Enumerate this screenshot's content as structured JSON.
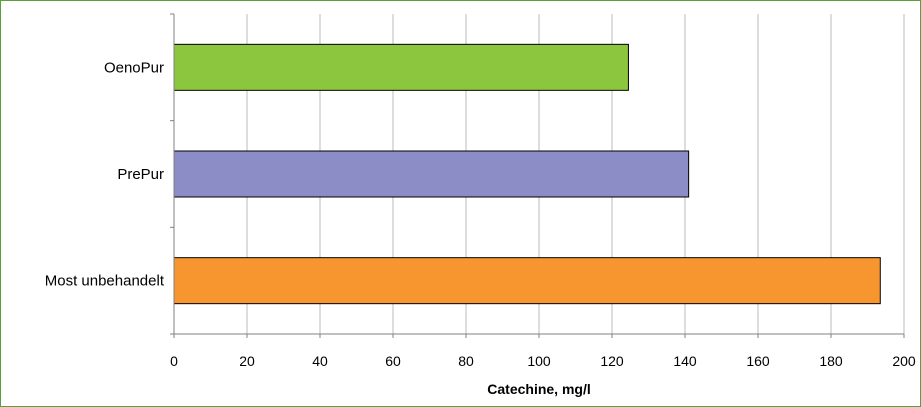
{
  "chart_data": {
    "type": "bar",
    "orientation": "horizontal",
    "categories": [
      "OenoPur",
      "PrePur",
      "Most unbehandelt"
    ],
    "values": [
      124.5,
      141,
      193.5
    ],
    "colors": [
      "#8cc63f",
      "#8c8cc6",
      "#f7962f"
    ],
    "xlabel": "Catechine, mg/l",
    "ylabel": "",
    "xlim": [
      0,
      200
    ],
    "xticks": [
      0,
      20,
      40,
      60,
      80,
      100,
      120,
      140,
      160,
      180,
      200
    ],
    "grid": "vertical",
    "legend": "none"
  },
  "style": {
    "frame_color": "#5aa03a",
    "grid_color": "#bbbbbb",
    "axis_color": "#808080",
    "bar_outline": "#000000"
  }
}
